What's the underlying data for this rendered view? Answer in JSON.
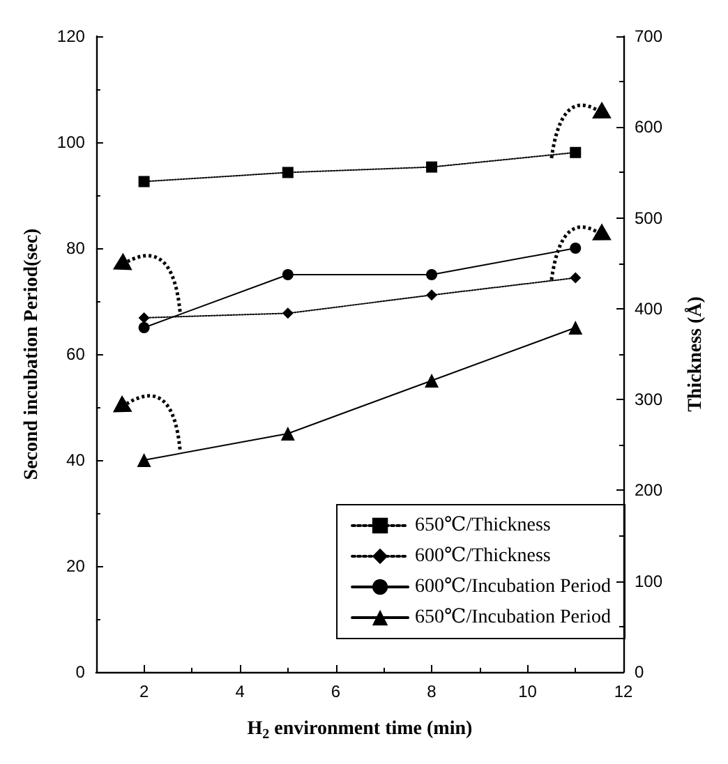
{
  "chart_data": {
    "type": "line",
    "xlabel": "H$_{2}$ environment time (min)",
    "ylabel": "Second incubation Period(sec)",
    "y2label": "Thickness (Å)",
    "x": [
      2,
      5,
      8,
      11
    ],
    "series": [
      {
        "name": "650℃/Thickness",
        "color": "#000000",
        "values": [
          540,
          550,
          556,
          572
        ],
        "axis": "y2",
        "marker": "square",
        "line_style": "dotted"
      },
      {
        "name": "600℃/Thickness",
        "color": "#000000",
        "values": [
          390,
          395,
          415,
          434
        ],
        "axis": "y2",
        "marker": "diamond",
        "line_style": "dotted"
      },
      {
        "name": "600℃/Incubation Period",
        "color": "#000000",
        "values": [
          65,
          75,
          75,
          80
        ],
        "marker": "circle",
        "line_style": "solid"
      },
      {
        "name": "650℃/Incubation Period",
        "color": "#000000",
        "values": [
          40,
          45,
          55,
          65
        ],
        "marker": "triangle",
        "line_style": "solid"
      }
    ],
    "xlim": [
      1,
      12
    ],
    "xticks": [
      2,
      4,
      6,
      8,
      10,
      12
    ],
    "ylim": [
      0,
      120
    ],
    "yticks": [
      0,
      20,
      40,
      60,
      80,
      100,
      120
    ],
    "y2lim": [
      0,
      700
    ],
    "y2ticks": [
      0,
      100,
      200,
      300,
      400,
      500,
      600,
      700
    ],
    "legend": "bottom right",
    "grid": false
  }
}
